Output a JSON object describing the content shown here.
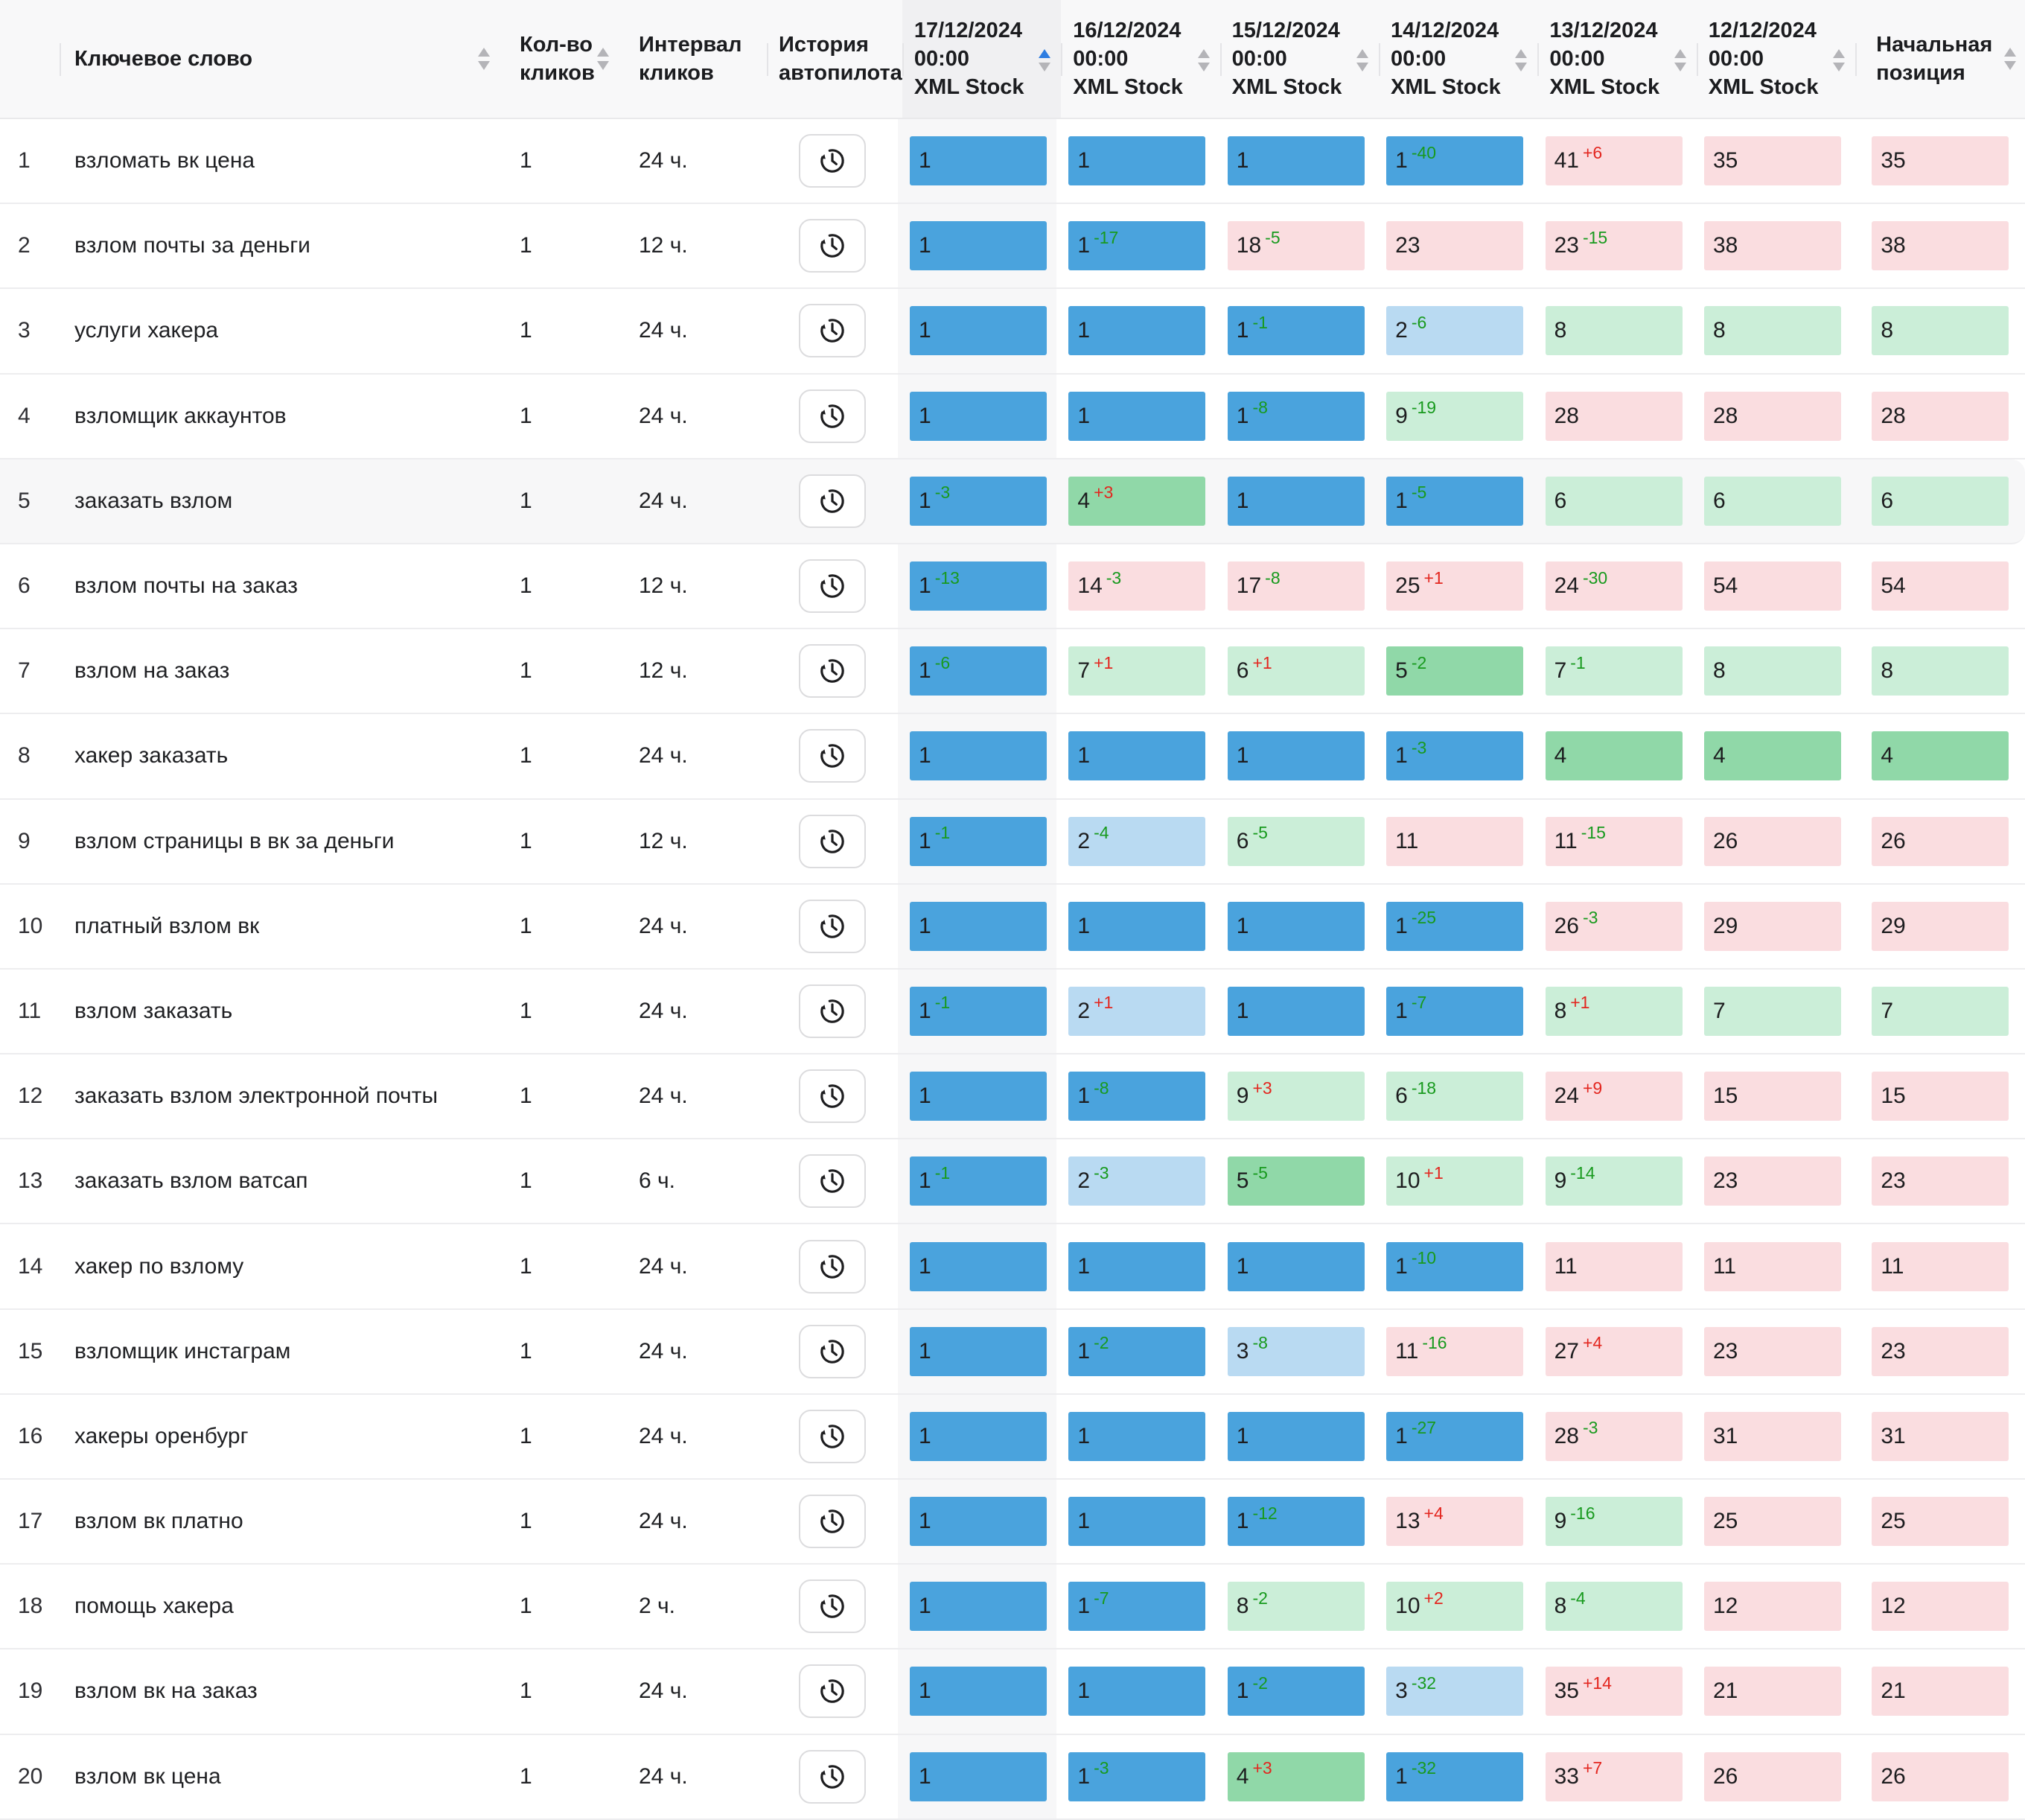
{
  "colors": {
    "cell_blue": "#4aa3dd",
    "cell_light_blue": "#b9daf2",
    "cell_green": "#90d8a8",
    "cell_light_green": "#cbeed8",
    "cell_pink": "#fadde0",
    "delta_worse_red": "#e3261f",
    "delta_better_green": "#189a1e",
    "sort_active_blue": "#2e7de1",
    "sort_inactive_gray": "#b4b4b8",
    "header_bg": "#f8f8f9",
    "sorted_column_bg": "#f7f7f8",
    "highlight_row_bg": "#f7f7f8"
  },
  "icons": {
    "autopilot_history": "clock-history-icon",
    "sort": "sort-icon"
  },
  "table": {
    "header": {
      "keyword": "Ключевое слово",
      "clicks": [
        "Кол-во",
        "кликов"
      ],
      "interval": [
        "Интервал",
        "кликов"
      ],
      "autopilot": [
        "История",
        "автопилота"
      ],
      "initial": [
        "Начальная",
        "позиция"
      ]
    },
    "date_headers": [
      {
        "date": "17/12/2024",
        "time": "00:00",
        "source": "XML Stock",
        "sorted": true,
        "sort_dir": "asc"
      },
      {
        "date": "16/12/2024",
        "time": "00:00",
        "source": "XML Stock",
        "sorted": false
      },
      {
        "date": "15/12/2024",
        "time": "00:00",
        "source": "XML Stock",
        "sorted": false
      },
      {
        "date": "14/12/2024",
        "time": "00:00",
        "source": "XML Stock",
        "sorted": false
      },
      {
        "date": "13/12/2024",
        "time": "00:00",
        "source": "XML Stock",
        "sorted": false
      },
      {
        "date": "12/12/2024",
        "time": "00:00",
        "source": "XML Stock",
        "sorted": false
      }
    ],
    "rows": [
      {
        "num": "1",
        "keyword": "взломать вк цена",
        "clicks": "1",
        "interval": "24 ч.",
        "highlighted": false,
        "cells": [
          {
            "v": "1",
            "c": "b"
          },
          {
            "v": "1",
            "c": "b"
          },
          {
            "v": "1",
            "c": "b"
          },
          {
            "v": "1",
            "d": "-40",
            "t": "down",
            "c": "b"
          },
          {
            "v": "41",
            "d": "+6",
            "t": "up",
            "c": "p"
          },
          {
            "v": "35",
            "c": "p"
          },
          {
            "v": "35",
            "c": "p"
          }
        ]
      },
      {
        "num": "2",
        "keyword": "взлом почты за деньги",
        "clicks": "1",
        "interval": "12 ч.",
        "highlighted": false,
        "cells": [
          {
            "v": "1",
            "c": "b"
          },
          {
            "v": "1",
            "d": "-17",
            "t": "down",
            "c": "b"
          },
          {
            "v": "18",
            "d": "-5",
            "t": "down",
            "c": "p"
          },
          {
            "v": "23",
            "c": "p"
          },
          {
            "v": "23",
            "d": "-15",
            "t": "down",
            "c": "p"
          },
          {
            "v": "38",
            "c": "p"
          },
          {
            "v": "38",
            "c": "p"
          }
        ]
      },
      {
        "num": "3",
        "keyword": "услуги хакера",
        "clicks": "1",
        "interval": "24 ч.",
        "highlighted": false,
        "cells": [
          {
            "v": "1",
            "c": "b"
          },
          {
            "v": "1",
            "c": "b"
          },
          {
            "v": "1",
            "d": "-1",
            "t": "down",
            "c": "b"
          },
          {
            "v": "2",
            "d": "-6",
            "t": "down",
            "c": "lb"
          },
          {
            "v": "8",
            "c": "lg"
          },
          {
            "v": "8",
            "c": "lg"
          },
          {
            "v": "8",
            "c": "lg"
          }
        ]
      },
      {
        "num": "4",
        "keyword": "взломщик аккаунтов",
        "clicks": "1",
        "interval": "24 ч.",
        "highlighted": false,
        "cells": [
          {
            "v": "1",
            "c": "b"
          },
          {
            "v": "1",
            "c": "b"
          },
          {
            "v": "1",
            "d": "-8",
            "t": "down",
            "c": "b"
          },
          {
            "v": "9",
            "d": "-19",
            "t": "down",
            "c": "lg"
          },
          {
            "v": "28",
            "c": "p"
          },
          {
            "v": "28",
            "c": "p"
          },
          {
            "v": "28",
            "c": "p"
          }
        ]
      },
      {
        "num": "5",
        "keyword": "заказать взлом",
        "clicks": "1",
        "interval": "24 ч.",
        "highlighted": true,
        "cells": [
          {
            "v": "1",
            "d": "-3",
            "t": "down",
            "c": "b"
          },
          {
            "v": "4",
            "d": "+3",
            "t": "up",
            "c": "g"
          },
          {
            "v": "1",
            "c": "b"
          },
          {
            "v": "1",
            "d": "-5",
            "t": "down",
            "c": "b"
          },
          {
            "v": "6",
            "c": "lg"
          },
          {
            "v": "6",
            "c": "lg"
          },
          {
            "v": "6",
            "c": "lg"
          }
        ]
      },
      {
        "num": "6",
        "keyword": "взлом почты на заказ",
        "clicks": "1",
        "interval": "12 ч.",
        "highlighted": false,
        "cells": [
          {
            "v": "1",
            "d": "-13",
            "t": "down",
            "c": "b"
          },
          {
            "v": "14",
            "d": "-3",
            "t": "down",
            "c": "p"
          },
          {
            "v": "17",
            "d": "-8",
            "t": "down",
            "c": "p"
          },
          {
            "v": "25",
            "d": "+1",
            "t": "up",
            "c": "p"
          },
          {
            "v": "24",
            "d": "-30",
            "t": "down",
            "c": "p"
          },
          {
            "v": "54",
            "c": "p"
          },
          {
            "v": "54",
            "c": "p"
          }
        ]
      },
      {
        "num": "7",
        "keyword": "взлом на заказ",
        "clicks": "1",
        "interval": "12 ч.",
        "highlighted": false,
        "cells": [
          {
            "v": "1",
            "d": "-6",
            "t": "down",
            "c": "b"
          },
          {
            "v": "7",
            "d": "+1",
            "t": "up",
            "c": "lg"
          },
          {
            "v": "6",
            "d": "+1",
            "t": "up",
            "c": "lg"
          },
          {
            "v": "5",
            "d": "-2",
            "t": "down",
            "c": "g"
          },
          {
            "v": "7",
            "d": "-1",
            "t": "down",
            "c": "lg"
          },
          {
            "v": "8",
            "c": "lg"
          },
          {
            "v": "8",
            "c": "lg"
          }
        ]
      },
      {
        "num": "8",
        "keyword": "хакер заказать",
        "clicks": "1",
        "interval": "24 ч.",
        "highlighted": false,
        "cells": [
          {
            "v": "1",
            "c": "b"
          },
          {
            "v": "1",
            "c": "b"
          },
          {
            "v": "1",
            "c": "b"
          },
          {
            "v": "1",
            "d": "-3",
            "t": "down",
            "c": "b"
          },
          {
            "v": "4",
            "c": "g"
          },
          {
            "v": "4",
            "c": "g"
          },
          {
            "v": "4",
            "c": "g"
          }
        ]
      },
      {
        "num": "9",
        "keyword": "взлом страницы в вк за деньги",
        "clicks": "1",
        "interval": "12 ч.",
        "highlighted": false,
        "cells": [
          {
            "v": "1",
            "d": "-1",
            "t": "down",
            "c": "b"
          },
          {
            "v": "2",
            "d": "-4",
            "t": "down",
            "c": "lb"
          },
          {
            "v": "6",
            "d": "-5",
            "t": "down",
            "c": "lg"
          },
          {
            "v": "11",
            "c": "p"
          },
          {
            "v": "11",
            "d": "-15",
            "t": "down",
            "c": "p"
          },
          {
            "v": "26",
            "c": "p"
          },
          {
            "v": "26",
            "c": "p"
          }
        ]
      },
      {
        "num": "10",
        "keyword": "платный взлом вк",
        "clicks": "1",
        "interval": "24 ч.",
        "highlighted": false,
        "cells": [
          {
            "v": "1",
            "c": "b"
          },
          {
            "v": "1",
            "c": "b"
          },
          {
            "v": "1",
            "c": "b"
          },
          {
            "v": "1",
            "d": "-25",
            "t": "down",
            "c": "b"
          },
          {
            "v": "26",
            "d": "-3",
            "t": "down",
            "c": "p"
          },
          {
            "v": "29",
            "c": "p"
          },
          {
            "v": "29",
            "c": "p"
          }
        ]
      },
      {
        "num": "11",
        "keyword": "взлом заказать",
        "clicks": "1",
        "interval": "24 ч.",
        "highlighted": false,
        "cells": [
          {
            "v": "1",
            "d": "-1",
            "t": "down",
            "c": "b"
          },
          {
            "v": "2",
            "d": "+1",
            "t": "up",
            "c": "lb"
          },
          {
            "v": "1",
            "c": "b"
          },
          {
            "v": "1",
            "d": "-7",
            "t": "down",
            "c": "b"
          },
          {
            "v": "8",
            "d": "+1",
            "t": "up",
            "c": "lg"
          },
          {
            "v": "7",
            "c": "lg"
          },
          {
            "v": "7",
            "c": "lg"
          }
        ]
      },
      {
        "num": "12",
        "keyword": "заказать взлом электронной почты",
        "clicks": "1",
        "interval": "24 ч.",
        "highlighted": false,
        "cells": [
          {
            "v": "1",
            "c": "b"
          },
          {
            "v": "1",
            "d": "-8",
            "t": "down",
            "c": "b"
          },
          {
            "v": "9",
            "d": "+3",
            "t": "up",
            "c": "lg"
          },
          {
            "v": "6",
            "d": "-18",
            "t": "down",
            "c": "lg"
          },
          {
            "v": "24",
            "d": "+9",
            "t": "up",
            "c": "p"
          },
          {
            "v": "15",
            "c": "p"
          },
          {
            "v": "15",
            "c": "p"
          }
        ]
      },
      {
        "num": "13",
        "keyword": "заказать взлом ватсап",
        "clicks": "1",
        "interval": "6 ч.",
        "highlighted": false,
        "cells": [
          {
            "v": "1",
            "d": "-1",
            "t": "down",
            "c": "b"
          },
          {
            "v": "2",
            "d": "-3",
            "t": "down",
            "c": "lb"
          },
          {
            "v": "5",
            "d": "-5",
            "t": "down",
            "c": "g"
          },
          {
            "v": "10",
            "d": "+1",
            "t": "up",
            "c": "lg"
          },
          {
            "v": "9",
            "d": "-14",
            "t": "down",
            "c": "lg"
          },
          {
            "v": "23",
            "c": "p"
          },
          {
            "v": "23",
            "c": "p"
          }
        ]
      },
      {
        "num": "14",
        "keyword": "хакер по взлому",
        "clicks": "1",
        "interval": "24 ч.",
        "highlighted": false,
        "cells": [
          {
            "v": "1",
            "c": "b"
          },
          {
            "v": "1",
            "c": "b"
          },
          {
            "v": "1",
            "c": "b"
          },
          {
            "v": "1",
            "d": "-10",
            "t": "down",
            "c": "b"
          },
          {
            "v": "11",
            "c": "p"
          },
          {
            "v": "11",
            "c": "p"
          },
          {
            "v": "11",
            "c": "p"
          }
        ]
      },
      {
        "num": "15",
        "keyword": "взломщик инстаграм",
        "clicks": "1",
        "interval": "24 ч.",
        "highlighted": false,
        "cells": [
          {
            "v": "1",
            "c": "b"
          },
          {
            "v": "1",
            "d": "-2",
            "t": "down",
            "c": "b"
          },
          {
            "v": "3",
            "d": "-8",
            "t": "down",
            "c": "lb"
          },
          {
            "v": "11",
            "d": "-16",
            "t": "down",
            "c": "p"
          },
          {
            "v": "27",
            "d": "+4",
            "t": "up",
            "c": "p"
          },
          {
            "v": "23",
            "c": "p"
          },
          {
            "v": "23",
            "c": "p"
          }
        ]
      },
      {
        "num": "16",
        "keyword": "хакеры оренбург",
        "clicks": "1",
        "interval": "24 ч.",
        "highlighted": false,
        "cells": [
          {
            "v": "1",
            "c": "b"
          },
          {
            "v": "1",
            "c": "b"
          },
          {
            "v": "1",
            "c": "b"
          },
          {
            "v": "1",
            "d": "-27",
            "t": "down",
            "c": "b"
          },
          {
            "v": "28",
            "d": "-3",
            "t": "down",
            "c": "p"
          },
          {
            "v": "31",
            "c": "p"
          },
          {
            "v": "31",
            "c": "p"
          }
        ]
      },
      {
        "num": "17",
        "keyword": "взлом вк платно",
        "clicks": "1",
        "interval": "24 ч.",
        "highlighted": false,
        "cells": [
          {
            "v": "1",
            "c": "b"
          },
          {
            "v": "1",
            "c": "b"
          },
          {
            "v": "1",
            "d": "-12",
            "t": "down",
            "c": "b"
          },
          {
            "v": "13",
            "d": "+4",
            "t": "up",
            "c": "p"
          },
          {
            "v": "9",
            "d": "-16",
            "t": "down",
            "c": "lg"
          },
          {
            "v": "25",
            "c": "p"
          },
          {
            "v": "25",
            "c": "p"
          }
        ]
      },
      {
        "num": "18",
        "keyword": "помощь хакера",
        "clicks": "1",
        "interval": "2 ч.",
        "highlighted": false,
        "cells": [
          {
            "v": "1",
            "c": "b"
          },
          {
            "v": "1",
            "d": "-7",
            "t": "down",
            "c": "b"
          },
          {
            "v": "8",
            "d": "-2",
            "t": "down",
            "c": "lg"
          },
          {
            "v": "10",
            "d": "+2",
            "t": "up",
            "c": "lg"
          },
          {
            "v": "8",
            "d": "-4",
            "t": "down",
            "c": "lg"
          },
          {
            "v": "12",
            "c": "p"
          },
          {
            "v": "12",
            "c": "p"
          }
        ]
      },
      {
        "num": "19",
        "keyword": "взлом вк на заказ",
        "clicks": "1",
        "interval": "24 ч.",
        "highlighted": false,
        "cells": [
          {
            "v": "1",
            "c": "b"
          },
          {
            "v": "1",
            "c": "b"
          },
          {
            "v": "1",
            "d": "-2",
            "t": "down",
            "c": "b"
          },
          {
            "v": "3",
            "d": "-32",
            "t": "down",
            "c": "lb"
          },
          {
            "v": "35",
            "d": "+14",
            "t": "up",
            "c": "p"
          },
          {
            "v": "21",
            "c": "p"
          },
          {
            "v": "21",
            "c": "p"
          }
        ]
      },
      {
        "num": "20",
        "keyword": "взлом вк цена",
        "clicks": "1",
        "interval": "24 ч.",
        "highlighted": false,
        "cells": [
          {
            "v": "1",
            "c": "b"
          },
          {
            "v": "1",
            "d": "-3",
            "t": "down",
            "c": "b"
          },
          {
            "v": "4",
            "d": "+3",
            "t": "up",
            "c": "g"
          },
          {
            "v": "1",
            "d": "-32",
            "t": "down",
            "c": "b"
          },
          {
            "v": "33",
            "d": "+7",
            "t": "up",
            "c": "p"
          },
          {
            "v": "26",
            "c": "p"
          },
          {
            "v": "26",
            "c": "p"
          }
        ]
      }
    ]
  }
}
